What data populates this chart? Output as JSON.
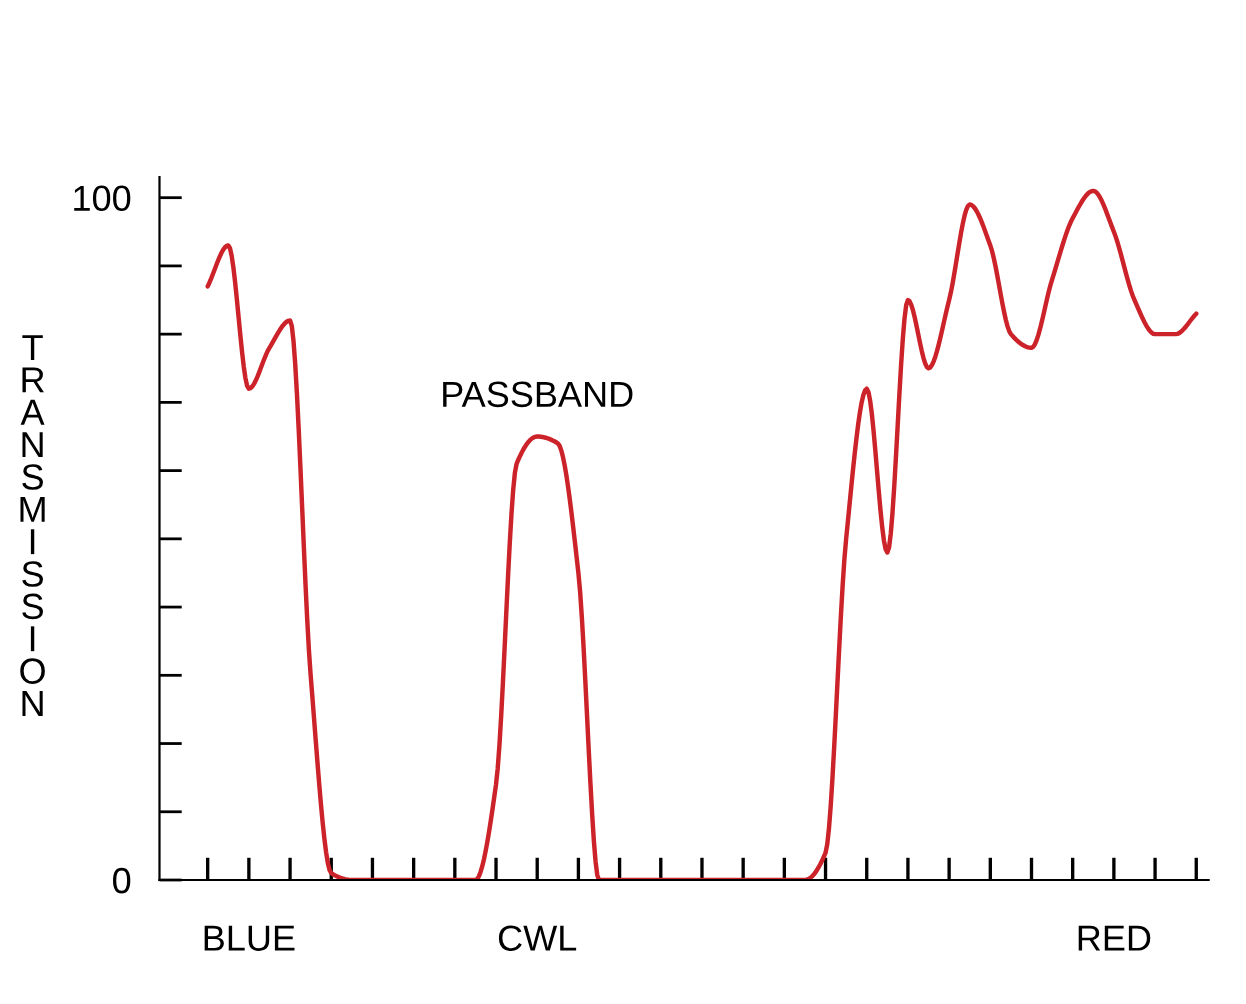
{
  "chart_data": {
    "type": "line",
    "ylabel": "TRANSMISSION",
    "categories": [
      null,
      null,
      null,
      "BLUE",
      null,
      null,
      null,
      null,
      null,
      null,
      null,
      null,
      null,
      null,
      null,
      null,
      null,
      "CWL",
      null,
      null,
      null,
      null,
      null,
      null,
      null,
      null,
      null,
      null,
      null,
      null,
      null,
      null,
      null,
      null,
      null,
      null,
      null,
      null,
      null,
      null,
      null,
      null,
      null,
      null,
      null,
      "RED",
      null,
      null,
      null,
      null
    ],
    "series": [
      {
        "color": "#cc2229",
        "values": [
          null,
          87,
          93,
          72,
          78,
          82,
          30,
          1,
          0,
          0,
          0,
          0,
          0,
          0,
          0,
          14,
          61,
          65,
          64,
          45,
          0,
          0,
          0,
          0,
          0,
          0,
          0,
          0,
          0,
          0,
          0,
          4,
          50,
          72,
          48,
          85,
          75,
          85,
          99,
          93,
          80,
          78,
          88,
          97,
          101,
          95,
          85,
          80,
          80,
          83
        ]
      }
    ],
    "ylim": [
      0,
      103
    ],
    "yticks": [
      0,
      {
        "value": 10,
        "label": null
      },
      {
        "value": 20,
        "label": null
      },
      {
        "value": 30,
        "label": null
      },
      {
        "value": 40,
        "label": null
      },
      {
        "value": 50,
        "label": null
      },
      {
        "value": 60,
        "label": null
      },
      {
        "value": 70,
        "label": null
      },
      {
        "value": 80,
        "label": null
      },
      {
        "value": 90,
        "label": null
      },
      100
    ],
    "annotations": [
      {
        "text": "PASSBAND",
        "x": "CWL",
        "y": 65
      }
    ],
    "grid": false,
    "marker": "none",
    "line_style": "solid"
  }
}
